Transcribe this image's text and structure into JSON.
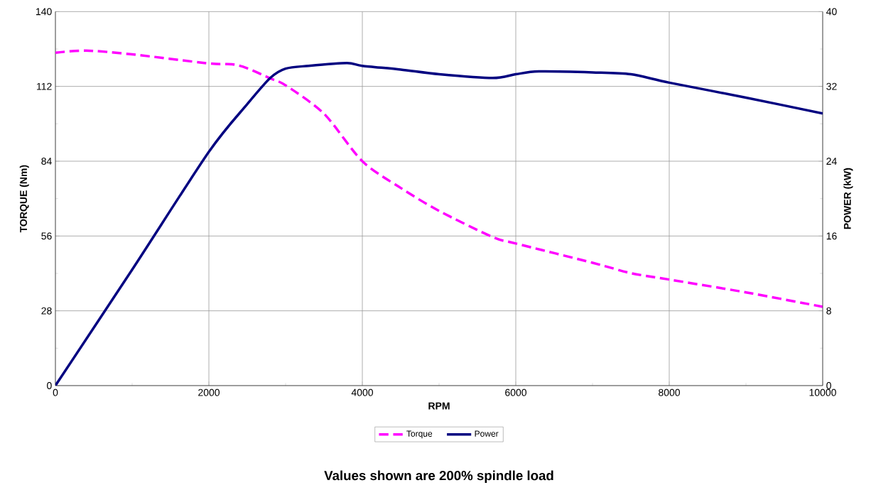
{
  "chart_data": {
    "type": "line",
    "xlabel": "RPM",
    "ylabel": "TORQUE (Nm)",
    "y2label": "POWER (kW)",
    "annotations": [
      "Values shown are 200% spindle load"
    ],
    "xlim": [
      0,
      10000
    ],
    "xticks": [
      0,
      2000,
      4000,
      6000,
      8000,
      10000
    ],
    "ylim": [
      0,
      140
    ],
    "yticks": [
      0,
      28,
      56,
      84,
      112,
      140
    ],
    "y2lim": [
      0,
      40
    ],
    "y2ticks": [
      0,
      8,
      16,
      24,
      32,
      40
    ],
    "grid": true,
    "legend": "bottom",
    "series": [
      {
        "name": "Torque",
        "color": "#ff00ff",
        "line_style": "dashed",
        "x": [
          0,
          400,
          1000,
          2000,
          2300,
          2500,
          2800,
          3000,
          3500,
          4000,
          4500,
          5000,
          5700,
          6000,
          7000,
          7500,
          8000,
          9000,
          10000
        ],
        "values": [
          124.6,
          125.4,
          124,
          120.6,
          120.3,
          118.8,
          115,
          112.4,
          101.8,
          84,
          74,
          65.4,
          55.6,
          53.2,
          46,
          42.1,
          39.7,
          34.9,
          29.5
        ]
      },
      {
        "name": "Power",
        "color": "#000080",
        "line_style": "solid",
        "axis": "y2",
        "x": [
          0,
          1000,
          2000,
          2500,
          2800,
          3000,
          3300,
          3800,
          4000,
          4500,
          5000,
          5700,
          6000,
          6300,
          7000,
          7500,
          8000,
          9000,
          10000
        ],
        "values": [
          0,
          12.4,
          25,
          30.1,
          32.9,
          33.9,
          34.2,
          34.5,
          34.2,
          33.8,
          33.3,
          32.9,
          33.3,
          33.6,
          33.5,
          33.3,
          32.4,
          30.8,
          29.1
        ]
      }
    ]
  }
}
